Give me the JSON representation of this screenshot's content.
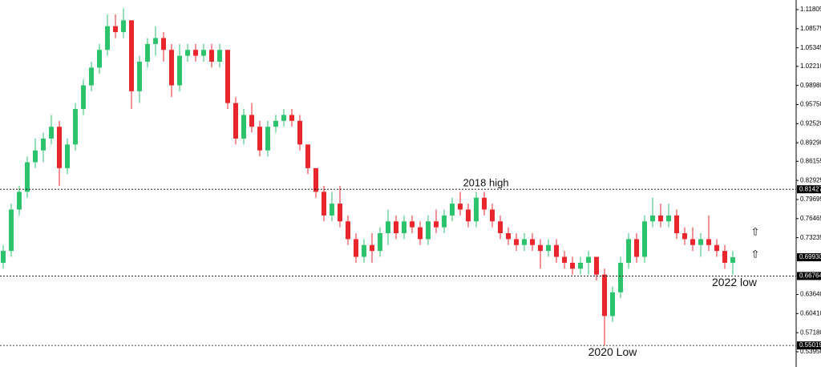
{
  "chart_data": {
    "type": "candlestick",
    "up_color": "#2bc36b",
    "down_color": "#e8262b",
    "ylim": [
      0.5219,
      1.1343
    ],
    "yticks": [
      1.11805,
      1.08575,
      1.05345,
      {
        "value": 1.0221,
        "label": "1.02210"
      },
      {
        "value": 0.9898,
        "label": "0.98980"
      },
      {
        "value": 0.9575,
        "label": "0.95750"
      },
      {
        "value": 0.9252,
        "label": "0.92520"
      },
      {
        "value": 0.8929,
        "label": "0.89290"
      },
      0.86155,
      0.82925,
      0.79695,
      0.76465,
      0.73235,
      {
        "value": 0.6364,
        "label": "0.63640"
      },
      {
        "value": 0.6041,
        "label": "0.60410"
      },
      {
        "value": 0.5718,
        "label": "0.57180"
      },
      {
        "value": 0.5395,
        "label": "0.53950"
      }
    ],
    "levels": [
      {
        "value": 0.81427,
        "annotation": "2018 high"
      },
      {
        "value": 0.66764,
        "annotation": "2022 low"
      },
      {
        "value": 0.55019,
        "annotation": "2020 Low"
      }
    ],
    "current": {
      "value": 0.6993,
      "label": "0.69930"
    },
    "ohlc": [
      [
        0.69,
        0.72,
        0.68,
        0.71
      ],
      [
        0.71,
        0.79,
        0.7,
        0.78
      ],
      [
        0.78,
        0.82,
        0.77,
        0.81
      ],
      [
        0.81,
        0.87,
        0.8,
        0.86
      ],
      [
        0.86,
        0.9,
        0.85,
        0.88
      ],
      [
        0.88,
        0.91,
        0.86,
        0.9
      ],
      [
        0.9,
        0.94,
        0.89,
        0.92
      ],
      [
        0.92,
        0.93,
        0.82,
        0.85
      ],
      [
        0.85,
        0.9,
        0.84,
        0.89
      ],
      [
        0.89,
        0.96,
        0.88,
        0.95
      ],
      [
        0.95,
        1.0,
        0.94,
        0.99
      ],
      [
        0.99,
        1.03,
        0.98,
        1.02
      ],
      [
        1.02,
        1.06,
        1.01,
        1.05
      ],
      [
        1.05,
        1.11,
        1.04,
        1.09
      ],
      [
        1.09,
        1.11,
        1.07,
        1.08
      ],
      [
        1.08,
        1.12,
        1.07,
        1.1
      ],
      [
        1.1,
        1.1,
        0.95,
        0.98
      ],
      [
        0.98,
        1.04,
        0.96,
        1.03
      ],
      [
        1.03,
        1.07,
        1.02,
        1.06
      ],
      [
        1.06,
        1.09,
        1.04,
        1.07
      ],
      [
        1.07,
        1.08,
        1.03,
        1.05
      ],
      [
        1.05,
        1.06,
        0.97,
        0.99
      ],
      [
        0.99,
        1.06,
        0.98,
        1.04
      ],
      [
        1.04,
        1.06,
        1.03,
        1.05
      ],
      [
        1.05,
        1.06,
        1.03,
        1.04
      ],
      [
        1.04,
        1.06,
        1.03,
        1.05
      ],
      [
        1.05,
        1.06,
        1.02,
        1.03
      ],
      [
        1.03,
        1.06,
        1.02,
        1.05
      ],
      [
        1.05,
        1.05,
        0.95,
        0.96
      ],
      [
        0.96,
        0.97,
        0.89,
        0.9
      ],
      [
        0.9,
        0.95,
        0.89,
        0.94
      ],
      [
        0.94,
        0.96,
        0.91,
        0.92
      ],
      [
        0.92,
        0.93,
        0.87,
        0.88
      ],
      [
        0.88,
        0.93,
        0.87,
        0.92
      ],
      [
        0.92,
        0.94,
        0.91,
        0.93
      ],
      [
        0.93,
        0.95,
        0.92,
        0.94
      ],
      [
        0.94,
        0.95,
        0.92,
        0.93
      ],
      [
        0.93,
        0.94,
        0.88,
        0.89
      ],
      [
        0.89,
        0.89,
        0.84,
        0.85
      ],
      [
        0.85,
        0.85,
        0.8,
        0.81
      ],
      [
        0.81,
        0.82,
        0.76,
        0.77
      ],
      [
        0.77,
        0.81,
        0.76,
        0.79
      ],
      [
        0.79,
        0.82,
        0.75,
        0.76
      ],
      [
        0.76,
        0.77,
        0.72,
        0.73
      ],
      [
        0.73,
        0.74,
        0.69,
        0.7
      ],
      [
        0.7,
        0.73,
        0.69,
        0.72
      ],
      [
        0.72,
        0.74,
        0.69,
        0.71
      ],
      [
        0.71,
        0.75,
        0.7,
        0.74
      ],
      [
        0.74,
        0.78,
        0.72,
        0.76
      ],
      [
        0.76,
        0.77,
        0.73,
        0.74
      ],
      [
        0.74,
        0.77,
        0.73,
        0.76
      ],
      [
        0.76,
        0.77,
        0.74,
        0.75
      ],
      [
        0.75,
        0.76,
        0.72,
        0.73
      ],
      [
        0.73,
        0.77,
        0.72,
        0.76
      ],
      [
        0.76,
        0.78,
        0.74,
        0.75
      ],
      [
        0.75,
        0.78,
        0.74,
        0.77
      ],
      [
        0.77,
        0.8,
        0.76,
        0.79
      ],
      [
        0.79,
        0.81,
        0.77,
        0.78
      ],
      [
        0.78,
        0.79,
        0.75,
        0.76
      ],
      [
        0.76,
        0.81,
        0.75,
        0.8
      ],
      [
        0.8,
        0.81,
        0.77,
        0.78
      ],
      [
        0.78,
        0.79,
        0.75,
        0.76
      ],
      [
        0.76,
        0.77,
        0.73,
        0.74
      ],
      [
        0.74,
        0.75,
        0.72,
        0.73
      ],
      [
        0.73,
        0.74,
        0.71,
        0.72
      ],
      [
        0.72,
        0.74,
        0.71,
        0.73
      ],
      [
        0.73,
        0.74,
        0.71,
        0.72
      ],
      [
        0.72,
        0.73,
        0.68,
        0.71
      ],
      [
        0.71,
        0.73,
        0.7,
        0.72
      ],
      [
        0.72,
        0.73,
        0.69,
        0.7
      ],
      [
        0.7,
        0.71,
        0.68,
        0.69
      ],
      [
        0.69,
        0.7,
        0.67,
        0.68
      ],
      [
        0.68,
        0.7,
        0.67,
        0.69
      ],
      [
        0.69,
        0.71,
        0.67,
        0.7
      ],
      [
        0.7,
        0.7,
        0.66,
        0.67
      ],
      [
        0.67,
        0.68,
        0.55,
        0.6
      ],
      [
        0.6,
        0.65,
        0.59,
        0.64
      ],
      [
        0.64,
        0.7,
        0.63,
        0.69
      ],
      [
        0.69,
        0.74,
        0.68,
        0.73
      ],
      [
        0.73,
        0.74,
        0.69,
        0.7
      ],
      [
        0.7,
        0.77,
        0.69,
        0.76
      ],
      [
        0.76,
        0.8,
        0.75,
        0.77
      ],
      [
        0.77,
        0.79,
        0.75,
        0.76
      ],
      [
        0.76,
        0.79,
        0.75,
        0.77
      ],
      [
        0.77,
        0.78,
        0.73,
        0.74
      ],
      [
        0.74,
        0.75,
        0.72,
        0.73
      ],
      [
        0.73,
        0.75,
        0.71,
        0.72
      ],
      [
        0.72,
        0.74,
        0.7,
        0.73
      ],
      [
        0.73,
        0.77,
        0.71,
        0.72
      ],
      [
        0.72,
        0.73,
        0.7,
        0.71
      ],
      [
        0.71,
        0.72,
        0.68,
        0.69
      ],
      [
        0.69,
        0.71,
        0.67,
        0.6993
      ]
    ]
  }
}
